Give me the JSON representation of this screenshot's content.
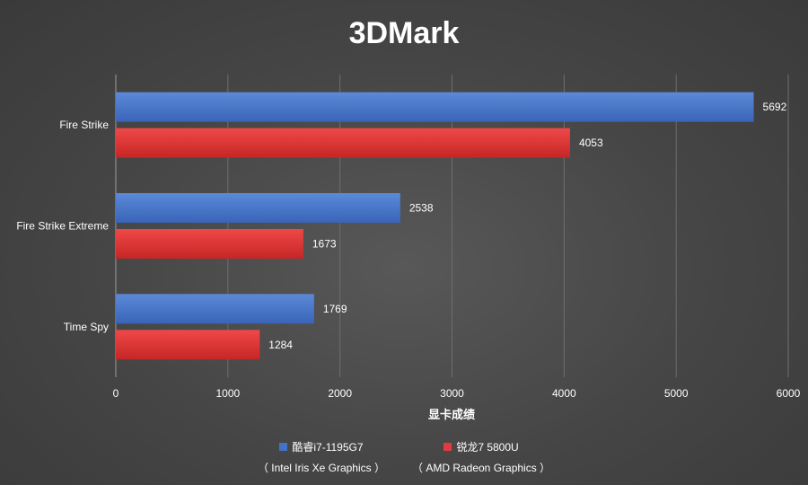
{
  "chart_data": {
    "type": "bar",
    "orientation": "horizontal",
    "title": "3DMark",
    "xlabel": "显卡成绩",
    "ylabel": "",
    "xlim": [
      0,
      6000
    ],
    "x_ticks": [
      "0",
      "1000",
      "2000",
      "3000",
      "4000",
      "5000",
      "6000"
    ],
    "grid": true,
    "legend_position": "bottom",
    "categories": [
      "Fire Strike",
      "Fire Strike Extreme",
      "Time Spy"
    ],
    "series": [
      {
        "name": "酷睿i7-1195G7",
        "subtitle": "（ Intel Iris Xe Graphics ）",
        "color": "#4472c4",
        "values": [
          5692,
          2538,
          1769
        ]
      },
      {
        "name": "锐龙7 5800U",
        "subtitle": "（ AMD Radeon Graphics ）",
        "color": "#e33b3b",
        "values": [
          4053,
          1673,
          1284
        ]
      }
    ]
  }
}
